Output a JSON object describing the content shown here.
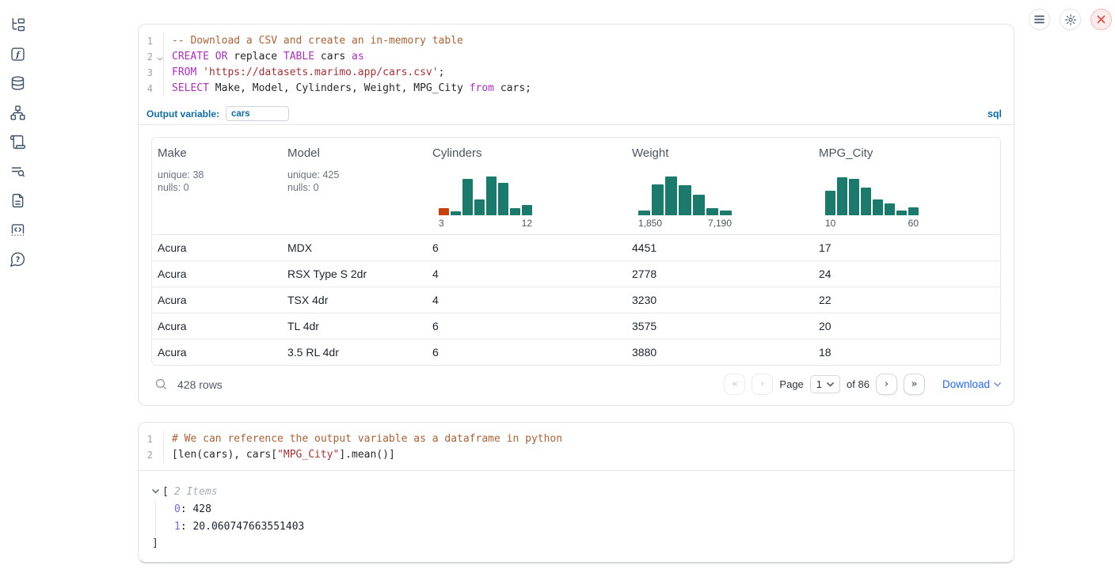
{
  "colors": {
    "hist_teal": "#1b7a6c",
    "hist_orange": "#c2410c",
    "accent_blue": "#136b9e",
    "link_blue": "#2668d9",
    "close_red": "#d94f4f"
  },
  "sidebar": {
    "icons": [
      "file-tree",
      "function",
      "database",
      "dependency-graph",
      "scroll",
      "list-search",
      "document",
      "code-snippet",
      "help"
    ]
  },
  "toolbar": {
    "buttons": [
      "menu",
      "settings",
      "close"
    ]
  },
  "sql_cell": {
    "lines": [
      {
        "n": "1",
        "segs": [
          {
            "t": "-- Download a CSV and create an in-memory table",
            "c": "comment"
          }
        ]
      },
      {
        "n": "2",
        "fold": true,
        "segs": [
          {
            "t": "CREATE",
            "c": "kw"
          },
          {
            "t": " ",
            "c": "plain"
          },
          {
            "t": "OR",
            "c": "kw"
          },
          {
            "t": " replace ",
            "c": "plain"
          },
          {
            "t": "TABLE",
            "c": "kw"
          },
          {
            "t": " cars ",
            "c": "plain"
          },
          {
            "t": "as",
            "c": "kw"
          }
        ]
      },
      {
        "n": "3",
        "segs": [
          {
            "t": "FROM",
            "c": "kw"
          },
          {
            "t": " ",
            "c": "plain"
          },
          {
            "t": "'https://datasets.marimo.app/cars.csv'",
            "c": "str"
          },
          {
            "t": ";",
            "c": "plain"
          }
        ]
      },
      {
        "n": "4",
        "segs": [
          {
            "t": "SELECT",
            "c": "kw"
          },
          {
            "t": " Make, Model, Cylinders, Weight, MPG_City ",
            "c": "plain"
          },
          {
            "t": "from",
            "c": "kw"
          },
          {
            "t": " cars;",
            "c": "plain"
          }
        ]
      }
    ],
    "output_variable_label": "Output variable:",
    "output_variable_value": "cars",
    "language_badge": "sql"
  },
  "data_table": {
    "columns": [
      {
        "name": "Make",
        "stats": [
          "unique: 38",
          "nulls: 0"
        ]
      },
      {
        "name": "Model",
        "stats": [
          "unique: 425",
          "nulls: 0"
        ]
      },
      {
        "name": "Cylinders",
        "hist": {
          "values": [
            18,
            10,
            88,
            38,
            95,
            78,
            18,
            25
          ],
          "highlight_index": 0,
          "min_label": "3",
          "max_label": "12"
        }
      },
      {
        "name": "Weight",
        "hist": {
          "values": [
            12,
            75,
            95,
            73,
            50,
            18,
            12
          ],
          "min_label": "1,850",
          "max_label": "7,190"
        }
      },
      {
        "name": "MPG_City",
        "hist": {
          "values": [
            60,
            92,
            88,
            68,
            38,
            28,
            12,
            20
          ],
          "min_label": "10",
          "max_label": "60"
        }
      }
    ],
    "rows": [
      [
        "Acura",
        "MDX",
        "6",
        "4451",
        "17"
      ],
      [
        "Acura",
        "RSX Type S 2dr",
        "4",
        "2778",
        "24"
      ],
      [
        "Acura",
        "TSX 4dr",
        "4",
        "3230",
        "22"
      ],
      [
        "Acura",
        "TL 4dr",
        "6",
        "3575",
        "20"
      ],
      [
        "Acura",
        "3.5 RL 4dr",
        "6",
        "3880",
        "18"
      ]
    ],
    "footer": {
      "row_count": "428 rows",
      "first": "«",
      "prev": "‹",
      "page_label": "Page",
      "page_value": "1",
      "of_label": "of 86",
      "next": "›",
      "last": "»",
      "download_label": "Download"
    }
  },
  "python_cell": {
    "lines": [
      {
        "n": "1",
        "segs": [
          {
            "t": "# We can reference the output variable as a dataframe in python",
            "c": "comment"
          }
        ]
      },
      {
        "n": "2",
        "segs": [
          {
            "t": "[len(cars), cars[",
            "c": "plain"
          },
          {
            "t": "\"MPG_City\"",
            "c": "str"
          },
          {
            "t": "].mean()]",
            "c": "plain"
          }
        ]
      }
    ],
    "output": {
      "bracket_open": "[",
      "items_label": "2 Items",
      "entries": [
        {
          "key": "0",
          "value": "428"
        },
        {
          "key": "1",
          "value": "20.060747663551403"
        }
      ],
      "bracket_close": "]"
    }
  }
}
